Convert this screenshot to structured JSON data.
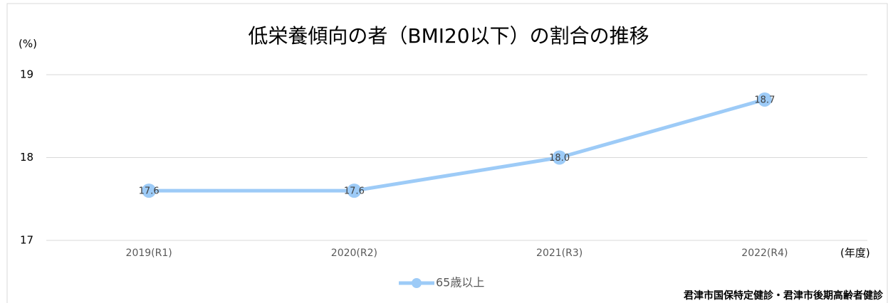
{
  "chart_data": {
    "type": "line",
    "title": "低栄養傾向の者（BMI20以下）の割合の推移",
    "y_label": "(%)",
    "x_label": "(年度)",
    "source": "君津市国保特定健診・君津市後期高齢者健診",
    "categories": [
      "2019(R1)",
      "2020(R2)",
      "2021(R3)",
      "2022(R4)"
    ],
    "series": [
      {
        "name": "65歳以上",
        "color": "#9dcbf7",
        "values": [
          17.6,
          17.6,
          18.0,
          18.7
        ],
        "value_labels": [
          "17.6",
          "17.6",
          "18.0",
          "18.7"
        ]
      }
    ],
    "ylim": [
      17,
      19
    ],
    "yticks": [
      17,
      18,
      19
    ],
    "grid": true,
    "legend": "bottom"
  }
}
